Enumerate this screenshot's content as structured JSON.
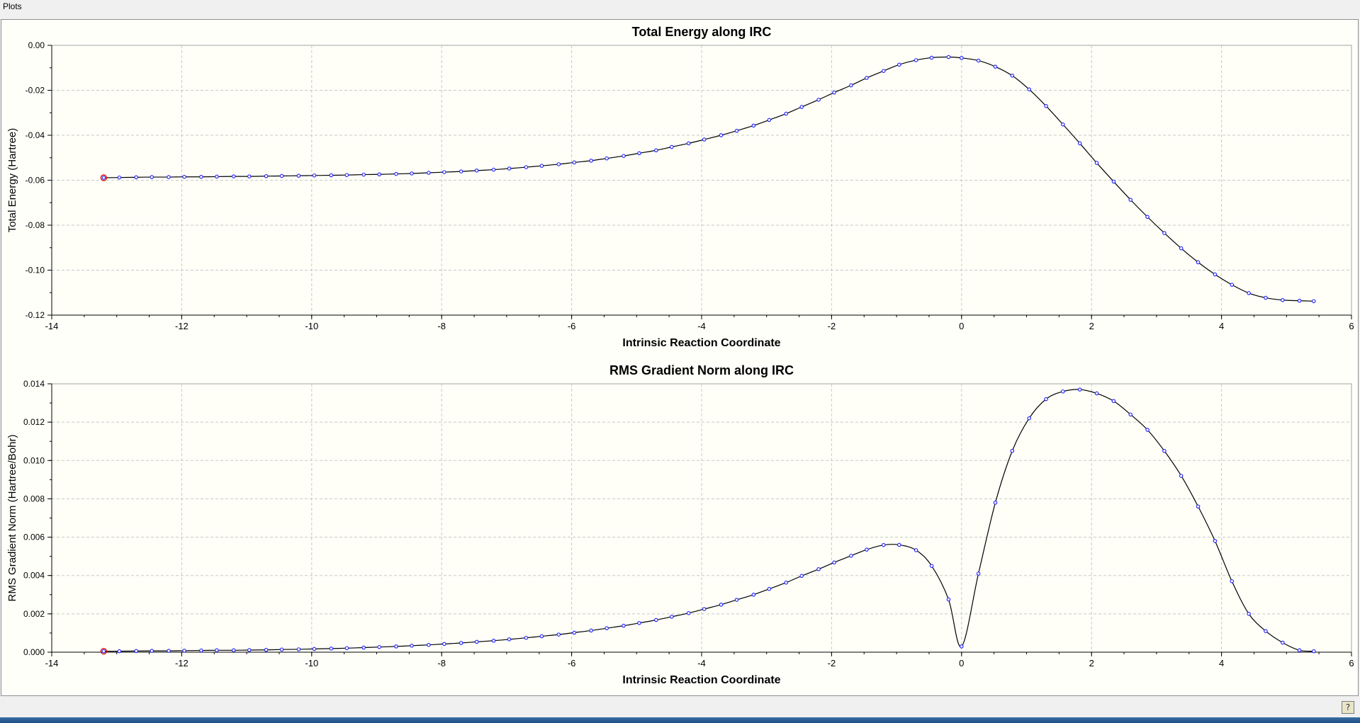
{
  "window": {
    "title": "Plots"
  },
  "chart_data": [
    {
      "type": "line",
      "title": "Total Energy along IRC",
      "xlabel": "Intrinsic Reaction Coordinate",
      "ylabel": "Total Energy (Hartree)",
      "xlim": [
        -14,
        6
      ],
      "ylim": [
        -0.12,
        0.0
      ],
      "xticks": [
        -14,
        -12,
        -10,
        -8,
        -6,
        -4,
        -2,
        0,
        2,
        4,
        6
      ],
      "yticks": [
        0.0,
        -0.02,
        -0.04,
        -0.06,
        -0.08,
        -0.1,
        -0.12
      ],
      "xtick_labels": [
        "-14",
        "-12",
        "-10",
        "-8",
        "-6",
        "-4",
        "-2",
        "0",
        "2",
        "4",
        "6"
      ],
      "ytick_labels": [
        "0.00",
        "-0.02",
        "-0.04",
        "-0.06",
        "-0.08",
        "-0.10",
        "-0.12"
      ],
      "grid": true,
      "highlight_index": 0,
      "colors": {
        "marker": "#1a1aff",
        "line": "#000000",
        "highlight": "#e01010"
      },
      "x": [
        -13.2,
        -12.96,
        -12.7,
        -12.46,
        -12.2,
        -11.96,
        -11.7,
        -11.46,
        -11.2,
        -10.96,
        -10.7,
        -10.46,
        -10.2,
        -9.96,
        -9.7,
        -9.46,
        -9.2,
        -8.96,
        -8.7,
        -8.46,
        -8.2,
        -7.96,
        -7.7,
        -7.46,
        -7.2,
        -6.96,
        -6.7,
        -6.46,
        -6.2,
        -5.96,
        -5.7,
        -5.46,
        -5.2,
        -4.96,
        -4.7,
        -4.46,
        -4.2,
        -3.96,
        -3.7,
        -3.46,
        -3.2,
        -2.96,
        -2.7,
        -2.46,
        -2.2,
        -1.96,
        -1.7,
        -1.46,
        -1.2,
        -0.96,
        -0.7,
        -0.46,
        -0.2,
        0.0,
        0.26,
        0.52,
        0.78,
        1.04,
        1.3,
        1.56,
        1.82,
        2.08,
        2.34,
        2.6,
        2.86,
        3.12,
        3.38,
        3.64,
        3.9,
        4.16,
        4.42,
        4.68,
        4.94,
        5.2,
        5.42
      ],
      "y": [
        -0.0589,
        -0.0588,
        -0.0587,
        -0.0586,
        -0.0586,
        -0.0585,
        -0.0585,
        -0.0584,
        -0.0583,
        -0.0583,
        -0.0582,
        -0.0581,
        -0.058,
        -0.0579,
        -0.0578,
        -0.0577,
        -0.0575,
        -0.0574,
        -0.0572,
        -0.057,
        -0.0567,
        -0.0564,
        -0.0561,
        -0.0557,
        -0.0553,
        -0.0548,
        -0.0542,
        -0.0536,
        -0.0529,
        -0.0521,
        -0.0513,
        -0.0503,
        -0.0492,
        -0.048,
        -0.0467,
        -0.0452,
        -0.0436,
        -0.0419,
        -0.04,
        -0.038,
        -0.0357,
        -0.0332,
        -0.0304,
        -0.0274,
        -0.0242,
        -0.021,
        -0.0178,
        -0.0145,
        -0.0114,
        -0.0086,
        -0.0066,
        -0.0055,
        -0.0052,
        -0.0056,
        -0.0068,
        -0.0095,
        -0.0135,
        -0.0196,
        -0.027,
        -0.0352,
        -0.0436,
        -0.0523,
        -0.0606,
        -0.0687,
        -0.0763,
        -0.0835,
        -0.0903,
        -0.0965,
        -0.1019,
        -0.1065,
        -0.1102,
        -0.1123,
        -0.1133,
        -0.1136,
        -0.1138
      ]
    },
    {
      "type": "line",
      "title": "RMS Gradient Norm along IRC",
      "xlabel": "Intrinsic Reaction Coordinate",
      "ylabel": "RMS Gradient Norm (Hartree/Bohr)",
      "xlim": [
        -14,
        6
      ],
      "ylim": [
        0.0,
        0.014
      ],
      "xticks": [
        -14,
        -12,
        -10,
        -8,
        -6,
        -4,
        -2,
        0,
        2,
        4,
        6
      ],
      "yticks": [
        0.014,
        0.012,
        0.01,
        0.008,
        0.006,
        0.004,
        0.002,
        0.0
      ],
      "xtick_labels": [
        "-14",
        "-12",
        "-10",
        "-8",
        "-6",
        "-4",
        "-2",
        "0",
        "2",
        "4",
        "6"
      ],
      "ytick_labels": [
        "0.014",
        "0.012",
        "0.010",
        "0.008",
        "0.006",
        "0.004",
        "0.002",
        "0.000"
      ],
      "grid": true,
      "highlight_index": 0,
      "colors": {
        "marker": "#1a1aff",
        "line": "#000000",
        "highlight": "#e01010"
      },
      "x": [
        -13.2,
        -12.96,
        -12.7,
        -12.46,
        -12.2,
        -11.96,
        -11.7,
        -11.46,
        -11.2,
        -10.96,
        -10.7,
        -10.46,
        -10.2,
        -9.96,
        -9.7,
        -9.46,
        -9.2,
        -8.96,
        -8.7,
        -8.46,
        -8.2,
        -7.96,
        -7.7,
        -7.46,
        -7.2,
        -6.96,
        -6.7,
        -6.46,
        -6.2,
        -5.96,
        -5.7,
        -5.46,
        -5.2,
        -4.96,
        -4.7,
        -4.46,
        -4.2,
        -3.96,
        -3.7,
        -3.46,
        -3.2,
        -2.96,
        -2.7,
        -2.46,
        -2.2,
        -1.96,
        -1.7,
        -1.46,
        -1.2,
        -0.96,
        -0.7,
        -0.46,
        -0.2,
        0.0,
        0.26,
        0.52,
        0.78,
        1.04,
        1.3,
        1.56,
        1.82,
        2.08,
        2.34,
        2.6,
        2.86,
        3.12,
        3.38,
        3.64,
        3.9,
        4.16,
        4.42,
        4.68,
        4.94,
        5.2,
        5.42
      ],
      "y": [
        5e-05,
        5e-05,
        6e-05,
        7e-05,
        7e-05,
        8e-05,
        9e-05,
        0.0001,
        0.0001,
        0.00011,
        0.00012,
        0.00014,
        0.00015,
        0.00017,
        0.00019,
        0.00021,
        0.00024,
        0.00027,
        0.0003,
        0.00034,
        0.00038,
        0.00043,
        0.00048,
        0.00054,
        0.0006,
        0.00067,
        0.00075,
        0.00083,
        0.00092,
        0.00102,
        0.00113,
        0.00125,
        0.00138,
        0.00152,
        0.00168,
        0.00185,
        0.00204,
        0.00225,
        0.00248,
        0.00273,
        0.003,
        0.0033,
        0.00363,
        0.00398,
        0.00433,
        0.00468,
        0.00503,
        0.00535,
        0.00559,
        0.0056,
        0.00532,
        0.0045,
        0.00275,
        0.0003,
        0.0041,
        0.0078,
        0.0105,
        0.0122,
        0.0132,
        0.0136,
        0.0137,
        0.0135,
        0.0131,
        0.0124,
        0.0116,
        0.0105,
        0.0092,
        0.0076,
        0.0058,
        0.0037,
        0.002,
        0.0011,
        0.0005,
        0.0001,
        5e-05
      ]
    }
  ]
}
